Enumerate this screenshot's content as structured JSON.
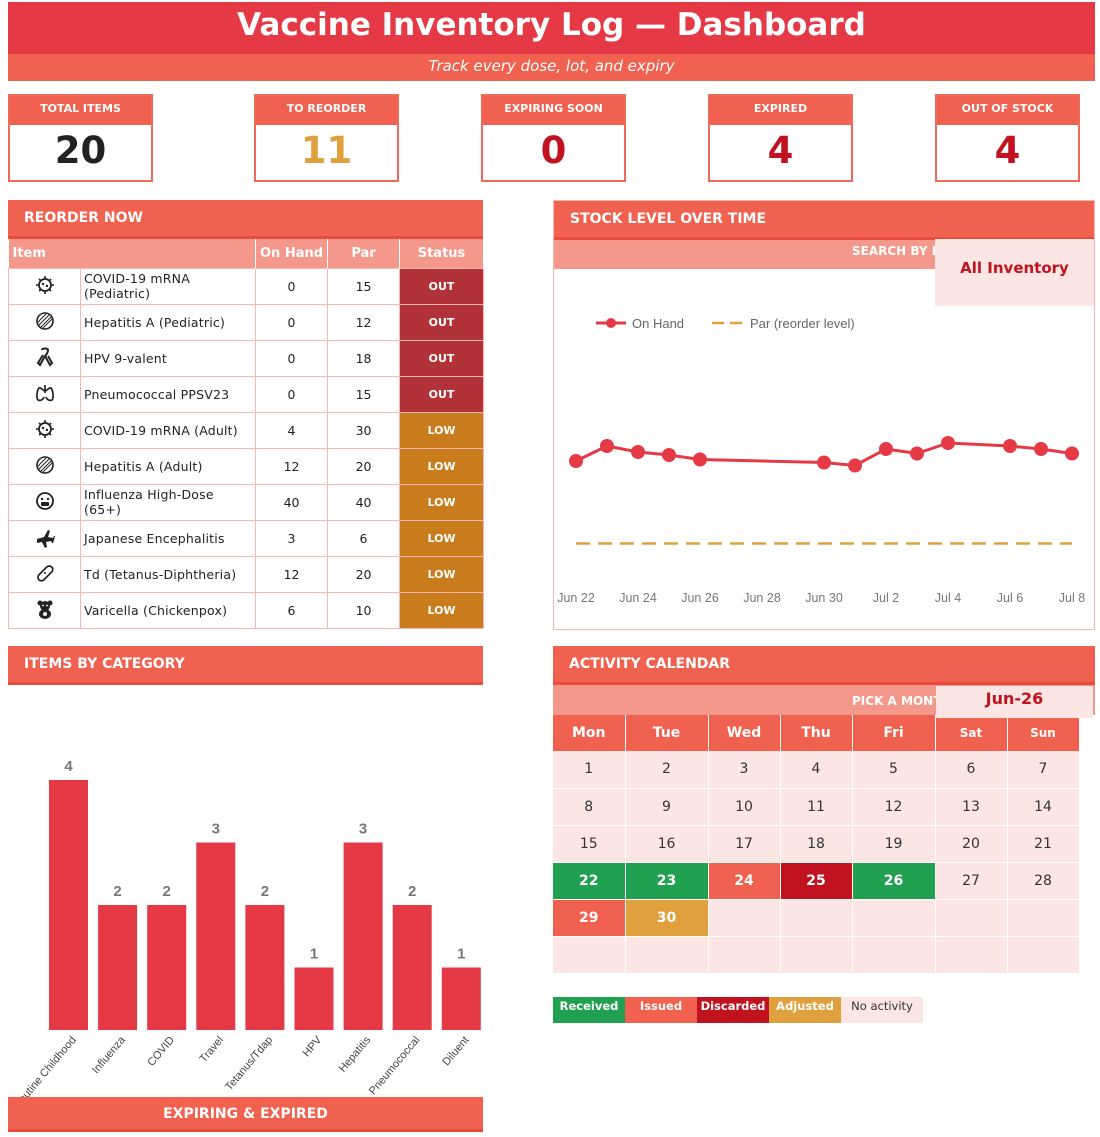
{
  "header": {
    "title": "Vaccine Inventory Log — Dashboard",
    "subtitle": "Track every dose, lot, and expiry"
  },
  "kpis": [
    {
      "label": "TOTAL ITEMS",
      "value": "20",
      "color": "#222222"
    },
    {
      "label": "TO REORDER",
      "value": "11",
      "color": "#e0a03d"
    },
    {
      "label": "EXPIRING SOON",
      "value": "0",
      "color": "#c1121f"
    },
    {
      "label": "EXPIRED",
      "value": "4",
      "color": "#c1121f"
    },
    {
      "label": "OUT OF STOCK",
      "value": "4",
      "color": "#c1121f"
    }
  ],
  "reorder": {
    "title": "REORDER NOW",
    "columns": [
      "Item",
      "On Hand",
      "Par",
      "Status"
    ],
    "rows": [
      {
        "icon": "virus-icon",
        "name": "COVID-19 mRNA (Pediatric)",
        "on_hand": "0",
        "par": "15",
        "status": "OUT"
      },
      {
        "icon": "liver-icon",
        "name": "Hepatitis A (Pediatric)",
        "on_hand": "0",
        "par": "12",
        "status": "OUT"
      },
      {
        "icon": "ribbon-icon",
        "name": "HPV 9-valent",
        "on_hand": "0",
        "par": "18",
        "status": "OUT"
      },
      {
        "icon": "lungs-icon",
        "name": "Pneumococcal PPSV23",
        "on_hand": "0",
        "par": "15",
        "status": "OUT"
      },
      {
        "icon": "virus-icon",
        "name": "COVID-19 mRNA (Adult)",
        "on_hand": "4",
        "par": "30",
        "status": "LOW"
      },
      {
        "icon": "liver-icon",
        "name": "Hepatitis A (Adult)",
        "on_hand": "12",
        "par": "20",
        "status": "LOW"
      },
      {
        "icon": "sick-face-icon",
        "name": "Influenza High-Dose (65+)",
        "on_hand": "40",
        "par": "40",
        "status": "LOW"
      },
      {
        "icon": "airplane-icon",
        "name": "Japanese Encephalitis",
        "on_hand": "3",
        "par": "6",
        "status": "LOW"
      },
      {
        "icon": "bandage-icon",
        "name": "Td (Tetanus-Diphtheria)",
        "on_hand": "12",
        "par": "20",
        "status": "LOW"
      },
      {
        "icon": "teddy-bear-icon",
        "name": "Varicella (Chickenpox)",
        "on_hand": "6",
        "par": "10",
        "status": "LOW"
      }
    ]
  },
  "stock": {
    "title": "STOCK LEVEL OVER TIME",
    "search_label": "SEARCH BY P",
    "filter_value": "All Inventory"
  },
  "categories_panel": {
    "title": "ITEMS BY CATEGORY"
  },
  "calendar": {
    "title": "ACTIVITY CALENDAR",
    "month_label": "PICK A MONT",
    "month_value": "Jun-26",
    "days": [
      "Mon",
      "Tue",
      "Wed",
      "Thu",
      "Fri",
      "Sat",
      "Sun"
    ],
    "weeks": [
      [
        {
          "d": "1",
          "s": ""
        },
        {
          "d": "2",
          "s": ""
        },
        {
          "d": "3",
          "s": ""
        },
        {
          "d": "4",
          "s": ""
        },
        {
          "d": "5",
          "s": ""
        },
        {
          "d": "6",
          "s": ""
        },
        {
          "d": "7",
          "s": ""
        }
      ],
      [
        {
          "d": "8",
          "s": ""
        },
        {
          "d": "9",
          "s": ""
        },
        {
          "d": "10",
          "s": ""
        },
        {
          "d": "11",
          "s": ""
        },
        {
          "d": "12",
          "s": ""
        },
        {
          "d": "13",
          "s": ""
        },
        {
          "d": "14",
          "s": ""
        }
      ],
      [
        {
          "d": "15",
          "s": ""
        },
        {
          "d": "16",
          "s": ""
        },
        {
          "d": "17",
          "s": ""
        },
        {
          "d": "18",
          "s": ""
        },
        {
          "d": "19",
          "s": ""
        },
        {
          "d": "20",
          "s": ""
        },
        {
          "d": "21",
          "s": ""
        }
      ],
      [
        {
          "d": "22",
          "s": "rec"
        },
        {
          "d": "23",
          "s": "rec"
        },
        {
          "d": "24",
          "s": "iss"
        },
        {
          "d": "25",
          "s": "dis"
        },
        {
          "d": "26",
          "s": "rec"
        },
        {
          "d": "27",
          "s": ""
        },
        {
          "d": "28",
          "s": ""
        }
      ],
      [
        {
          "d": "29",
          "s": "iss"
        },
        {
          "d": "30",
          "s": "adj"
        },
        {
          "d": "",
          "s": ""
        },
        {
          "d": "",
          "s": ""
        },
        {
          "d": "",
          "s": ""
        },
        {
          "d": "",
          "s": ""
        },
        {
          "d": "",
          "s": ""
        }
      ],
      [
        {
          "d": "",
          "s": ""
        },
        {
          "d": "",
          "s": ""
        },
        {
          "d": "",
          "s": ""
        },
        {
          "d": "",
          "s": ""
        },
        {
          "d": "",
          "s": ""
        },
        {
          "d": "",
          "s": ""
        },
        {
          "d": "",
          "s": ""
        }
      ]
    ],
    "legend": [
      {
        "label": "Received",
        "color": "#22a052"
      },
      {
        "label": "Issued",
        "color": "#f0624f"
      },
      {
        "label": "Discarded",
        "color": "#c1121f"
      },
      {
        "label": "Adjusted",
        "color": "#e0a03d"
      },
      {
        "label": "No activity",
        "color": "#fce6e3"
      }
    ]
  },
  "expiring": {
    "title": "EXPIRING & EXPIRED"
  },
  "colors": {
    "primary": "#e63946",
    "accent": "#f0624f",
    "par_line": "#e0a03d"
  },
  "chart_data": [
    {
      "type": "line",
      "x": [
        "Jun 22",
        "Jun 23",
        "Jun 24",
        "Jun 25",
        "Jun 26",
        "Jun 30",
        "Jul 1",
        "Jul 2",
        "Jul 3",
        "Jul 4",
        "Jul 6",
        "Jul 7",
        "Jul 8"
      ],
      "x_ticks": [
        "Jun 22",
        "Jun 24",
        "Jun 26",
        "Jun 28",
        "Jun 30",
        "Jul 2",
        "Jul 4",
        "Jul 6",
        "Jul 8"
      ],
      "series": [
        {
          "name": "On Hand",
          "values": [
            72,
            82,
            78,
            76,
            73,
            71,
            69,
            80,
            77,
            84,
            82,
            80,
            77
          ],
          "color": "#e63946"
        },
        {
          "name": "Par (reorder level)",
          "values": [
            17,
            17,
            17,
            17,
            17,
            17,
            17,
            17,
            17,
            17,
            17,
            17,
            17
          ],
          "color": "#e0a03d"
        }
      ],
      "ylim": [
        0,
        200
      ],
      "grid": false,
      "legend": "top-left"
    },
    {
      "type": "bar",
      "categories": [
        "Routine Childhood",
        "Influenza",
        "COVID",
        "Travel",
        "Tetanus/Tdap",
        "HPV",
        "Hepatitis",
        "Pneumococcal",
        "Diluent"
      ],
      "values": [
        4,
        2,
        2,
        3,
        2,
        1,
        3,
        2,
        1
      ],
      "ylim": [
        0,
        4.2
      ],
      "grid": false
    }
  ]
}
